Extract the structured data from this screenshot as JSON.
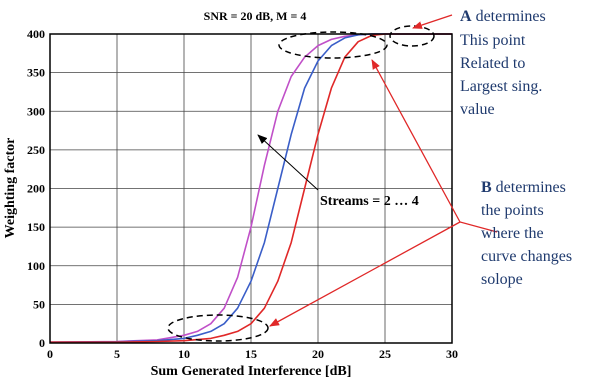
{
  "chart_data": {
    "type": "line",
    "title": "SNR = 20 dB, M = 4",
    "xlabel": "Sum Generated Interference [dB]",
    "ylabel": "Weighting factor",
    "xlim": [
      0,
      30
    ],
    "ylim": [
      0,
      400
    ],
    "xticks": [
      "0",
      "5",
      "10",
      "15",
      "20",
      "25",
      "30"
    ],
    "yticks": [
      "0",
      "50",
      "100",
      "150",
      "200",
      "250",
      "300",
      "350",
      "400"
    ],
    "grid": true,
    "series": [
      {
        "color": "#c050c8",
        "x": [
          0,
          5,
          8,
          10,
          11,
          12,
          13,
          14,
          15,
          16,
          17,
          18,
          19,
          20,
          21,
          22,
          23,
          24,
          25,
          30
        ],
        "y": [
          1,
          2,
          4,
          10,
          15,
          25,
          45,
          85,
          150,
          230,
          300,
          345,
          370,
          385,
          393,
          397,
          399,
          400,
          400,
          400
        ]
      },
      {
        "color": "#3a5ec8",
        "x": [
          0,
          5,
          8,
          10,
          11,
          12,
          13,
          14,
          15,
          16,
          17,
          18,
          19,
          20,
          21,
          22,
          23,
          24,
          25,
          30
        ],
        "y": [
          1,
          1.5,
          3,
          6,
          10,
          15,
          25,
          45,
          80,
          130,
          200,
          270,
          330,
          365,
          385,
          395,
          399,
          400,
          400,
          400
        ]
      },
      {
        "color": "#e02828",
        "x": [
          0,
          5,
          8,
          10,
          12,
          13,
          14,
          15,
          16,
          17,
          18,
          19,
          20,
          21,
          22,
          23,
          24,
          25,
          26,
          30
        ],
        "y": [
          1,
          1,
          2,
          3,
          6,
          10,
          15,
          25,
          45,
          80,
          130,
          200,
          270,
          330,
          370,
          390,
          398,
          400,
          400,
          400
        ]
      }
    ],
    "annotations": {
      "streams": "Streams = 2 … 4",
      "a_letter": "A",
      "a_text": [
        " determines",
        "This point",
        "Related to",
        "Largest sing.",
        "value"
      ],
      "b_letter": "B",
      "b_text": [
        " determines",
        "the points",
        "where the",
        "curve changes",
        "solope"
      ]
    }
  },
  "colors": {
    "annotation_text": "#1f3a6e",
    "arrow": "#e02828"
  }
}
